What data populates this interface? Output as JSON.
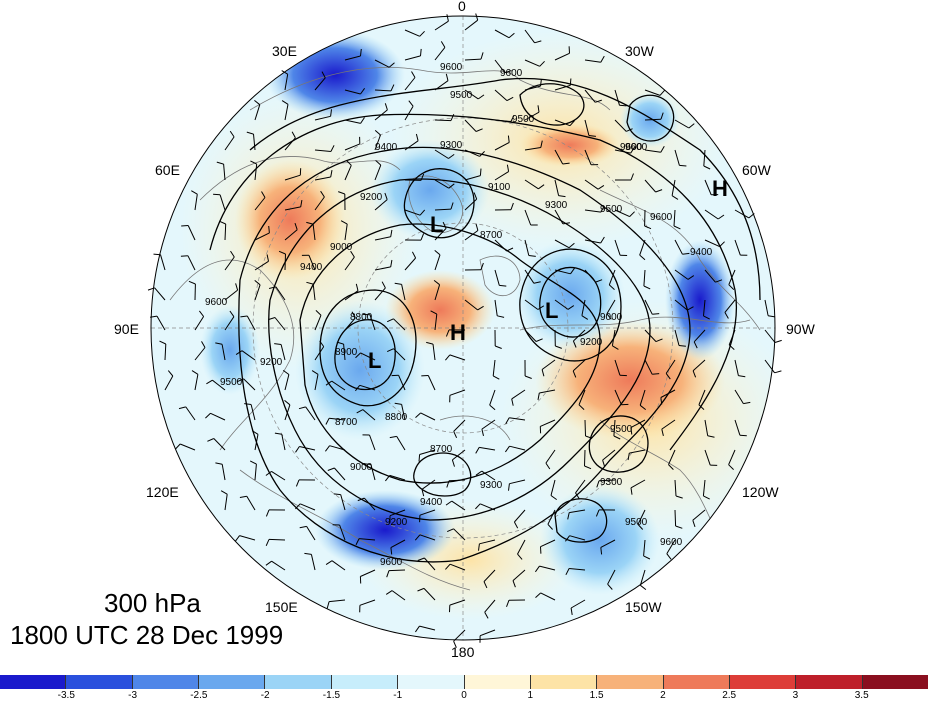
{
  "map": {
    "title_level": "300 hPa",
    "title_time": "1800 UTC 28 Dec 1999",
    "longitude_labels": [
      "0",
      "30W",
      "60W",
      "90W",
      "120W",
      "150W",
      "180",
      "150E",
      "120E",
      "90E",
      "60E",
      "30E"
    ],
    "highs": [
      "H",
      "H"
    ],
    "lows": [
      "L",
      "L",
      "L"
    ],
    "contour_labels": [
      "9600",
      "9600",
      "9500",
      "9500",
      "9600",
      "9400",
      "9300",
      "9100",
      "8700",
      "9300",
      "9500",
      "9600",
      "9200",
      "9000",
      "9400",
      "8800",
      "8900",
      "9500",
      "9200",
      "9600",
      "8700",
      "8800",
      "8700",
      "9000",
      "9200",
      "9400",
      "9300",
      "9300",
      "9500",
      "9600",
      "9500",
      "9600",
      "9400",
      "9000",
      "9200",
      "9600"
    ],
    "colors": {
      "background": "#ffffff",
      "land_outline": "#777777",
      "contour": "#000000",
      "barb": "#000000"
    }
  },
  "colorbar": {
    "tick_labels": [
      "-3.5",
      "-3",
      "-2.5",
      "-2",
      "-1.5",
      "-1",
      "0",
      "1",
      "1.5",
      "2",
      "2.5",
      "3",
      "3.5"
    ],
    "colors": [
      "#1a1acc",
      "#2a50dd",
      "#4f86e8",
      "#6aa8ee",
      "#9bd4f6",
      "#c7edfb",
      "#e4f7fc",
      "#fff6d8",
      "#fde3a6",
      "#f7b27a",
      "#ee7a5a",
      "#dd3d38",
      "#be1f2a",
      "#8a0f1f"
    ]
  }
}
